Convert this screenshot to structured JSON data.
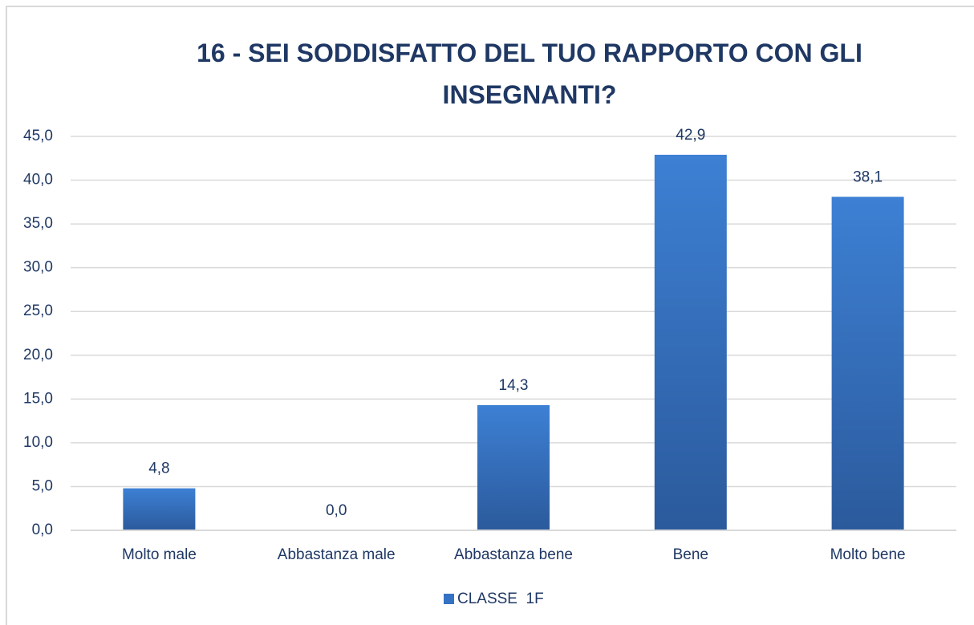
{
  "chart_data": {
    "type": "bar",
    "title": "16 - SEI SODDISFATTO DEL TUO RAPPORTO CON GLI INSEGNANTI?",
    "categories": [
      "Molto male",
      "Abbastanza male",
      "Abbastanza bene",
      "Bene",
      "Molto bene"
    ],
    "series": [
      {
        "name": "CLASSE  1F",
        "color": "#3572c4",
        "values": [
          4.8,
          0,
          14.3,
          42.9,
          38.1
        ],
        "value_labels": [
          "4,8",
          "0,0",
          "14,3",
          "42,9",
          "38,1"
        ]
      }
    ],
    "ylim": [
      0,
      45
    ],
    "yticks": [
      {
        "value": 0,
        "label": "0,0"
      },
      {
        "value": 5,
        "label": "5,0"
      },
      {
        "value": 10,
        "label": "10,0"
      },
      {
        "value": 15,
        "label": "15,0"
      },
      {
        "value": 20,
        "label": "20,0"
      },
      {
        "value": 25,
        "label": "25,0"
      },
      {
        "value": 30,
        "label": "30,0"
      },
      {
        "value": 35,
        "label": "35,0"
      },
      {
        "value": 40,
        "label": "40,0"
      },
      {
        "value": 45,
        "label": "45,0"
      }
    ],
    "grid": true,
    "legend": "bottom"
  }
}
